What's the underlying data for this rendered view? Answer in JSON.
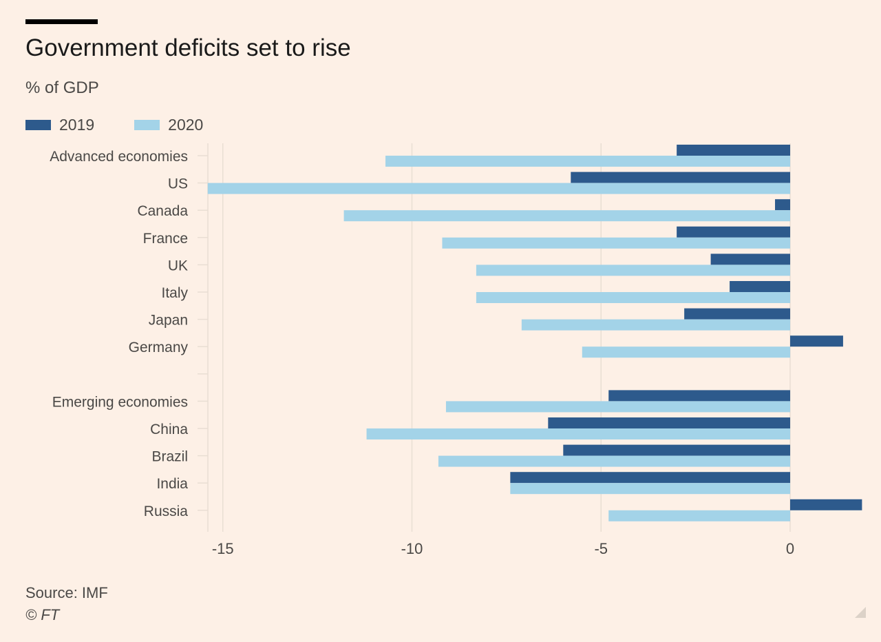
{
  "header": {
    "title": "Government deficits set to rise",
    "subtitle": "% of GDP"
  },
  "footer": {
    "source": "Source: IMF",
    "copyright": "© FT"
  },
  "colors": {
    "background": "#fdf0e6",
    "series_2019": "#2d5a8c",
    "series_2020": "#a3d3e8",
    "grid": "#e9ded3",
    "text": "#4a4846"
  },
  "chart_data": {
    "type": "bar",
    "orientation": "horizontal",
    "title": "Government deficits set to rise",
    "subtitle": "% of GDP",
    "xlabel": "",
    "ylabel": "",
    "xlim": [
      -15.3,
      1.9
    ],
    "xticks": [
      -15,
      -10,
      -5,
      0
    ],
    "xtick_labels": [
      "-15",
      "-10",
      "-5",
      "0"
    ],
    "grid": true,
    "legend_position": "top-left",
    "categories": [
      "Advanced economies",
      "US",
      "Canada",
      "France",
      "UK",
      "Italy",
      "Japan",
      "Germany",
      "",
      "Emerging economies",
      "China",
      "Brazil",
      "India",
      "Russia"
    ],
    "series": [
      {
        "name": "2019",
        "color": "#2d5a8c",
        "values": [
          -3.0,
          -5.8,
          -0.4,
          -3.0,
          -2.1,
          -1.6,
          -2.8,
          1.4,
          null,
          -4.8,
          -6.4,
          -6.0,
          -7.4,
          1.9
        ]
      },
      {
        "name": "2020",
        "color": "#a3d3e8",
        "values": [
          -10.7,
          -15.4,
          -11.8,
          -9.2,
          -8.3,
          -8.3,
          -7.1,
          -5.5,
          null,
          -9.1,
          -11.2,
          -9.3,
          -7.4,
          -4.8
        ]
      }
    ]
  }
}
